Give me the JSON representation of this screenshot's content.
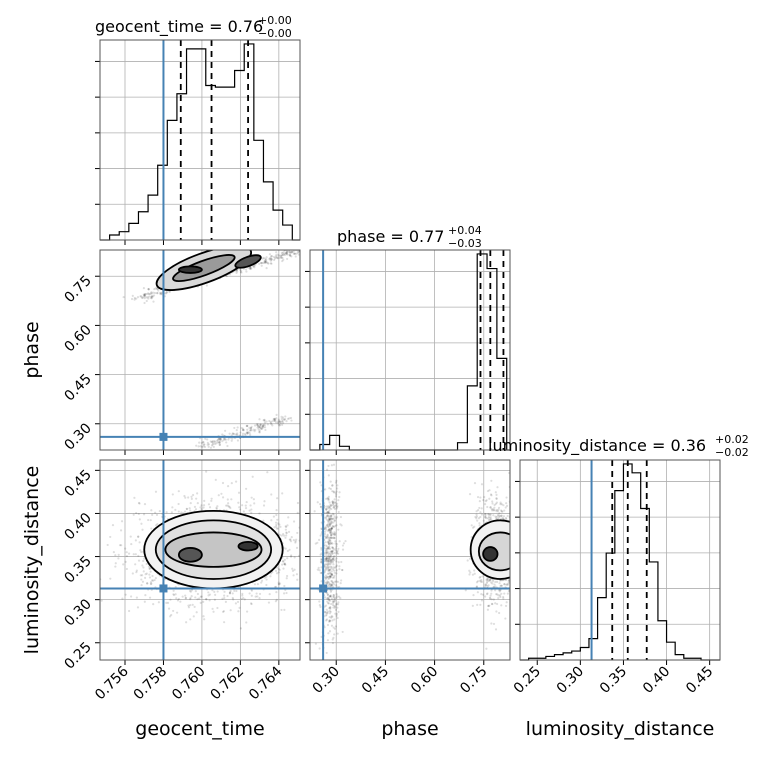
{
  "chart_data": {
    "type": "corner",
    "parameters": [
      "geocent_time",
      "phase",
      "luminosity_distance"
    ],
    "truths": {
      "geocent_time": 0.758,
      "phase": 0.26,
      "luminosity_distance": 0.313
    },
    "ranges": {
      "geocent_time": [
        0.7547,
        0.7651
      ],
      "phase": [
        0.22,
        0.83
      ],
      "luminosity_distance": [
        0.23,
        0.462
      ]
    },
    "ticks": {
      "geocent_time": [
        0.756,
        0.758,
        0.76,
        0.762,
        0.764
      ],
      "phase": [
        0.3,
        0.45,
        0.6,
        0.75
      ],
      "luminosity_distance": [
        0.25,
        0.3,
        0.35,
        0.4,
        0.45
      ]
    },
    "tick_labels": {
      "geocent_time": [
        "0.756",
        "0.758",
        "0.760",
        "0.762",
        "0.764"
      ],
      "phase": [
        "0.30",
        "0.45",
        "0.60",
        "0.75"
      ],
      "luminosity_distance": [
        "0.25",
        "0.30",
        "0.35",
        "0.40",
        "0.45"
      ]
    },
    "axis_labels": {
      "geocent_time": "geocent_time",
      "phase": "phase",
      "luminosity_distance": "luminosity_distance"
    },
    "titles": [
      {
        "parameter": "geocent_time",
        "main": "geocent_time = 0.76",
        "plus": "+0.00",
        "minus": "−0.00"
      },
      {
        "parameter": "phase",
        "main": "phase = 0.77",
        "plus": "+0.04",
        "minus": "−0.03"
      },
      {
        "parameter": "luminosity_distance",
        "main": "luminosity_distance = 0.36",
        "plus": "+0.02",
        "minus": "−0.02"
      }
    ],
    "histograms": [
      {
        "parameter": "geocent_time",
        "quantiles": [
          0.7589,
          0.7605,
          0.7624
        ],
        "bin_edges": [
          0.7547,
          0.7552,
          0.7557,
          0.7562,
          0.7567,
          0.7572,
          0.7577,
          0.7582,
          0.7587,
          0.7592,
          0.7597,
          0.7602,
          0.7607,
          0.7612,
          0.7617,
          0.7622,
          0.7627,
          0.7632,
          0.7637,
          0.7642,
          0.7647,
          0.7651
        ],
        "counts": [
          0,
          3,
          5,
          10,
          17,
          27,
          45,
          72,
          88,
          115,
          115,
          93,
          92,
          92,
          102,
          118,
          60,
          35,
          18,
          9,
          0
        ]
      },
      {
        "parameter": "phase",
        "quantiles": [
          0.74,
          0.77,
          0.81
        ],
        "bin_edges": [
          0.22,
          0.25,
          0.28,
          0.31,
          0.34,
          0.37,
          0.4,
          0.43,
          0.46,
          0.49,
          0.52,
          0.55,
          0.58,
          0.61,
          0.64,
          0.67,
          0.7,
          0.73,
          0.76,
          0.79,
          0.82,
          0.83
        ],
        "counts": [
          0,
          3,
          8,
          2,
          0,
          0,
          0,
          0,
          0,
          0,
          0,
          0,
          0,
          0,
          0,
          4,
          35,
          107,
          99,
          50,
          0
        ]
      },
      {
        "parameter": "luminosity_distance",
        "quantiles": [
          0.337,
          0.355,
          0.377
        ],
        "bin_edges": [
          0.23,
          0.24,
          0.25,
          0.26,
          0.27,
          0.28,
          0.29,
          0.3,
          0.31,
          0.32,
          0.33,
          0.34,
          0.35,
          0.36,
          0.37,
          0.38,
          0.39,
          0.4,
          0.41,
          0.42,
          0.43,
          0.44,
          0.45,
          0.462
        ],
        "counts": [
          0,
          1,
          1,
          2,
          3,
          4,
          5,
          7,
          12,
          35,
          60,
          95,
          110,
          105,
          85,
          55,
          22,
          10,
          3,
          1,
          1,
          0,
          0
        ]
      }
    ],
    "pairs": [
      {
        "x": "geocent_time",
        "y": "phase"
      },
      {
        "x": "geocent_time",
        "y": "luminosity_distance"
      },
      {
        "x": "phase",
        "y": "luminosity_distance"
      }
    ]
  }
}
